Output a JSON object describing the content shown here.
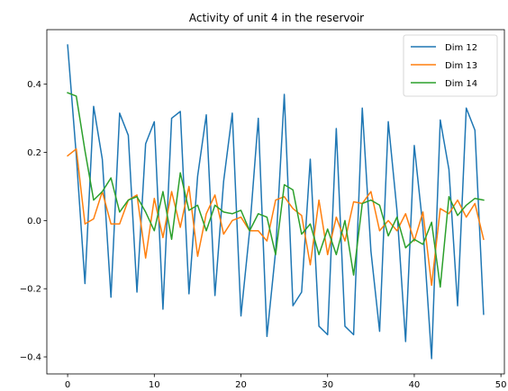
{
  "chart_data": {
    "type": "line",
    "title": "Activity of unit 4 in the reservoir",
    "xlabel": "",
    "ylabel": "",
    "xlim": [
      -2.4,
      50.4
    ],
    "ylim": [
      -0.45,
      0.56
    ],
    "xticks": [
      0,
      10,
      20,
      30,
      40,
      50
    ],
    "yticks": [
      -0.4,
      -0.2,
      0.0,
      0.2,
      0.4
    ],
    "xtick_labels": [
      "0",
      "10",
      "20",
      "30",
      "40",
      "50"
    ],
    "ytick_labels": [
      "−0.4",
      "−0.2",
      "0.0",
      "0.2",
      "0.4"
    ],
    "grid": false,
    "legend_position": "top-right",
    "x": [
      0,
      1,
      2,
      3,
      4,
      5,
      6,
      7,
      8,
      9,
      10,
      11,
      12,
      13,
      14,
      15,
      16,
      17,
      18,
      19,
      20,
      21,
      22,
      23,
      24,
      25,
      26,
      27,
      28,
      29,
      30,
      31,
      32,
      33,
      34,
      35,
      36,
      37,
      38,
      39,
      40,
      41,
      42,
      43,
      44,
      45,
      46,
      47,
      48
    ],
    "series": [
      {
        "name": "Dim 12",
        "color": "#1f77b4",
        "values": [
          0.515,
          0.19,
          -0.185,
          0.335,
          0.18,
          -0.225,
          0.315,
          0.25,
          -0.21,
          0.225,
          0.29,
          -0.26,
          0.3,
          0.32,
          -0.215,
          0.13,
          0.31,
          -0.22,
          0.115,
          0.315,
          -0.28,
          -0.03,
          0.3,
          -0.34,
          -0.09,
          0.37,
          -0.25,
          -0.21,
          0.18,
          -0.31,
          -0.335,
          0.27,
          -0.31,
          -0.335,
          0.33,
          -0.09,
          -0.325,
          0.29,
          0.03,
          -0.355,
          0.22,
          -0.02,
          -0.405,
          0.295,
          0.15,
          -0.25,
          0.33,
          0.265,
          -0.275
        ]
      },
      {
        "name": "Dim 13",
        "color": "#ff7f0e",
        "values": [
          0.19,
          0.21,
          -0.01,
          0.005,
          0.085,
          -0.01,
          -0.01,
          0.06,
          0.075,
          -0.11,
          0.065,
          -0.05,
          0.085,
          -0.02,
          0.1,
          -0.105,
          0.02,
          0.075,
          -0.04,
          0.0,
          0.01,
          -0.03,
          -0.03,
          -0.06,
          0.06,
          0.07,
          0.035,
          0.015,
          -0.13,
          0.06,
          -0.1,
          0.01,
          -0.06,
          0.055,
          0.05,
          0.085,
          -0.03,
          0.0,
          -0.03,
          0.02,
          -0.06,
          0.025,
          -0.19,
          0.035,
          0.02,
          0.06,
          0.01,
          0.05,
          -0.055
        ]
      },
      {
        "name": "Dim 14",
        "color": "#2ca02c",
        "values": [
          0.375,
          0.365,
          0.205,
          0.06,
          0.085,
          0.125,
          0.025,
          0.06,
          0.07,
          0.025,
          -0.03,
          0.085,
          -0.055,
          0.14,
          0.03,
          0.045,
          -0.03,
          0.045,
          0.025,
          0.02,
          0.03,
          -0.03,
          0.02,
          0.01,
          -0.1,
          0.105,
          0.09,
          -0.04,
          -0.01,
          -0.1,
          -0.025,
          -0.1,
          0.0,
          -0.16,
          0.05,
          0.06,
          0.045,
          -0.045,
          0.01,
          -0.08,
          -0.055,
          -0.07,
          -0.005,
          -0.195,
          0.07,
          0.015,
          0.045,
          0.065,
          0.06
        ]
      }
    ]
  }
}
